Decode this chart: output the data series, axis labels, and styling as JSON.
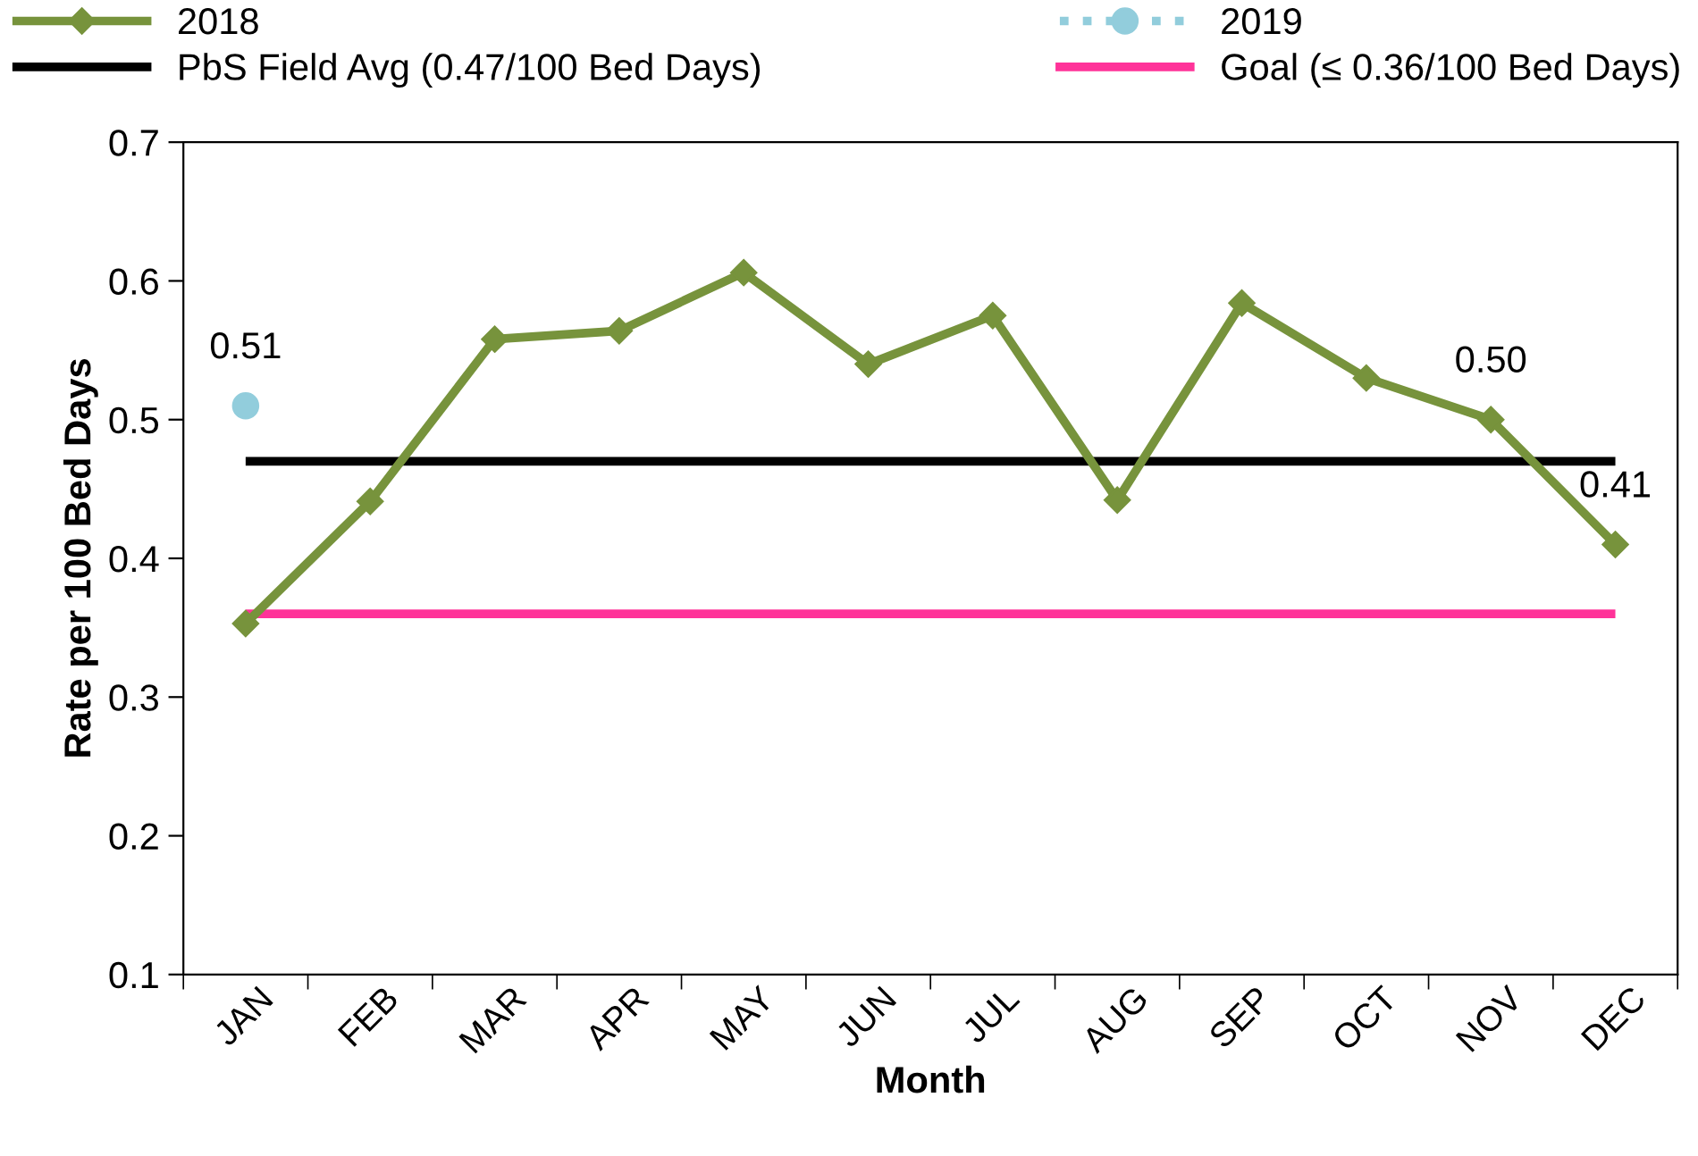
{
  "chart_data": {
    "type": "line",
    "xlabel": "Month",
    "ylabel": "Rate per 100 Bed Days",
    "categories": [
      "JAN",
      "FEB",
      "MAR",
      "APR",
      "MAY",
      "JUN",
      "JUL",
      "AUG",
      "SEP",
      "OCT",
      "NOV",
      "DEC"
    ],
    "series": [
      {
        "name": "2018",
        "color": "#77933c",
        "marker": "diamond",
        "line_style": "solid",
        "values": [
          0.353,
          0.441,
          0.558,
          0.564,
          0.606,
          0.54,
          0.575,
          0.442,
          0.584,
          0.53,
          0.5,
          0.41
        ],
        "value_labels": [
          null,
          null,
          null,
          null,
          null,
          null,
          null,
          null,
          null,
          null,
          "0.50",
          "0.41"
        ]
      },
      {
        "name": "2019",
        "color": "#92cddc",
        "marker": "circle",
        "line_style": "dotted",
        "values": [
          0.51,
          null,
          null,
          null,
          null,
          null,
          null,
          null,
          null,
          null,
          null,
          null
        ],
        "value_labels": [
          "0.51",
          null,
          null,
          null,
          null,
          null,
          null,
          null,
          null,
          null,
          null,
          null
        ]
      }
    ],
    "ref_lines": [
      {
        "axis": "y",
        "value": 0.47,
        "label": "PbS Field Avg (0.47/100 Bed Days)",
        "color": "#000000"
      },
      {
        "axis": "y",
        "value": 0.36,
        "label": "Goal (≤ 0.36/100 Bed Days)",
        "color": "#ff3399"
      }
    ],
    "ylim": [
      0.1,
      0.7
    ],
    "yticks": [
      0.1,
      0.2,
      0.3,
      0.4,
      0.5,
      0.6,
      0.7
    ],
    "grid": false,
    "legend": "top"
  }
}
